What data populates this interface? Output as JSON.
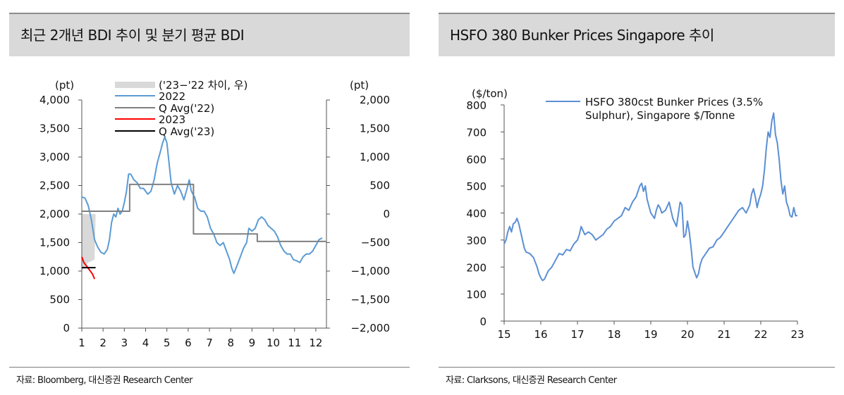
{
  "left": {
    "title": "최근 2개년 BDI 추이 및 분기 평균 BDI",
    "source": "자료: Bloomberg, 대신증권 Research Center",
    "chart_data": {
      "type": "line",
      "y_unit_left": "(pt)",
      "y_unit_right": "(pt)",
      "ylim_left": [
        0,
        4000
      ],
      "ylim_right": [
        -2000,
        2000
      ],
      "xlim": [
        1,
        12.5
      ],
      "x_ticks": [
        "1",
        "2",
        "3",
        "4",
        "5",
        "6",
        "7",
        "8",
        "9",
        "10",
        "11",
        "12"
      ],
      "y_ticks_left": [
        "0",
        "500",
        "1,000",
        "1,500",
        "2,000",
        "2,500",
        "3,000",
        "3,500",
        "4,000"
      ],
      "y_ticks_right": [
        "−2,000",
        "−1,500",
        "−1,000",
        "−500",
        "0",
        "500",
        "1,000",
        "1,500",
        "2,000"
      ],
      "grid": false,
      "legend": "top-left",
      "colors": {
        "diff": "#d9d9d9",
        "bdi2022": "#5b9bd5",
        "qavg22": "#808080",
        "bdi2023": "#ff0000",
        "qavg23": "#000000"
      },
      "series": [
        {
          "name": "('23−'22 차이, 우)",
          "axis": "right",
          "kind": "area",
          "points": [
            [
              1.0,
              -1000
            ],
            [
              1.3,
              -850
            ],
            [
              1.6,
              -800
            ],
            [
              1.65,
              0
            ]
          ]
        },
        {
          "name": "2022",
          "axis": "left",
          "kind": "line",
          "points": [
            [
              1.0,
              2300
            ],
            [
              1.15,
              2280
            ],
            [
              1.3,
              2150
            ],
            [
              1.45,
              1900
            ],
            [
              1.6,
              1550
            ],
            [
              1.75,
              1420
            ],
            [
              1.9,
              1330
            ],
            [
              2.05,
              1300
            ],
            [
              2.2,
              1380
            ],
            [
              2.3,
              1550
            ],
            [
              2.4,
              1850
            ],
            [
              2.5,
              2000
            ],
            [
              2.6,
              1950
            ],
            [
              2.7,
              2100
            ],
            [
              2.8,
              2000
            ],
            [
              2.9,
              2050
            ],
            [
              3.0,
              2200
            ],
            [
              3.1,
              2400
            ],
            [
              3.2,
              2700
            ],
            [
              3.3,
              2700
            ],
            [
              3.45,
              2600
            ],
            [
              3.6,
              2550
            ],
            [
              3.75,
              2450
            ],
            [
              3.9,
              2450
            ],
            [
              4.0,
              2400
            ],
            [
              4.1,
              2350
            ],
            [
              4.25,
              2400
            ],
            [
              4.4,
              2600
            ],
            [
              4.55,
              2900
            ],
            [
              4.7,
              3100
            ],
            [
              4.8,
              3250
            ],
            [
              4.9,
              3350
            ],
            [
              5.0,
              3250
            ],
            [
              5.1,
              2900
            ],
            [
              5.2,
              2550
            ],
            [
              5.35,
              2350
            ],
            [
              5.5,
              2500
            ],
            [
              5.65,
              2400
            ],
            [
              5.8,
              2250
            ],
            [
              5.95,
              2450
            ],
            [
              6.05,
              2600
            ],
            [
              6.15,
              2400
            ],
            [
              6.3,
              2300
            ],
            [
              6.45,
              2100
            ],
            [
              6.6,
              2050
            ],
            [
              6.75,
              2050
            ],
            [
              6.9,
              1950
            ],
            [
              7.05,
              1750
            ],
            [
              7.2,
              1650
            ],
            [
              7.35,
              1500
            ],
            [
              7.5,
              1450
            ],
            [
              7.65,
              1500
            ],
            [
              7.8,
              1350
            ],
            [
              7.95,
              1200
            ],
            [
              8.05,
              1050
            ],
            [
              8.15,
              960
            ],
            [
              8.3,
              1100
            ],
            [
              8.45,
              1250
            ],
            [
              8.6,
              1400
            ],
            [
              8.75,
              1500
            ],
            [
              8.85,
              1750
            ],
            [
              9.0,
              1700
            ],
            [
              9.15,
              1750
            ],
            [
              9.3,
              1900
            ],
            [
              9.45,
              1950
            ],
            [
              9.6,
              1900
            ],
            [
              9.75,
              1800
            ],
            [
              9.9,
              1750
            ],
            [
              10.05,
              1700
            ],
            [
              10.2,
              1600
            ],
            [
              10.35,
              1450
            ],
            [
              10.5,
              1350
            ],
            [
              10.65,
              1300
            ],
            [
              10.8,
              1300
            ],
            [
              10.95,
              1200
            ],
            [
              11.1,
              1180
            ],
            [
              11.25,
              1150
            ],
            [
              11.4,
              1250
            ],
            [
              11.55,
              1300
            ],
            [
              11.7,
              1300
            ],
            [
              11.85,
              1350
            ],
            [
              12.0,
              1450
            ],
            [
              12.15,
              1550
            ],
            [
              12.3,
              1580
            ]
          ]
        },
        {
          "name": "Q Avg('22)",
          "axis": "left",
          "kind": "step",
          "points": [
            [
              1.0,
              2050
            ],
            [
              3.25,
              2050
            ],
            [
              3.25,
              2520
            ],
            [
              6.25,
              2520
            ],
            [
              6.25,
              1650
            ],
            [
              9.25,
              1650
            ],
            [
              9.25,
              1520
            ],
            [
              12.5,
              1520
            ]
          ]
        },
        {
          "name": "2023",
          "axis": "left",
          "kind": "line",
          "points": [
            [
              1.0,
              1250
            ],
            [
              1.1,
              1150
            ],
            [
              1.2,
              1100
            ],
            [
              1.3,
              1050
            ],
            [
              1.4,
              1000
            ],
            [
              1.5,
              950
            ],
            [
              1.6,
              860
            ]
          ]
        },
        {
          "name": "Q Avg('23)",
          "axis": "left",
          "kind": "line",
          "points": [
            [
              1.0,
              1060
            ],
            [
              1.65,
              1060
            ]
          ]
        }
      ]
    }
  },
  "right": {
    "title": "HSFO 380 Bunker Prices Singapore 추이",
    "source": "자료: Clarksons, 대신증권 Research Center",
    "chart_data": {
      "type": "line",
      "y_unit": "($/ton)",
      "ylim": [
        0,
        800
      ],
      "xlim": [
        15,
        23
      ],
      "x_ticks": [
        "15",
        "16",
        "17",
        "18",
        "19",
        "20",
        "21",
        "22",
        "23"
      ],
      "y_ticks": [
        "0",
        "100",
        "200",
        "300",
        "400",
        "500",
        "600",
        "700",
        "800"
      ],
      "grid": false,
      "legend": "top-right",
      "color": "#5b8fd4",
      "series": [
        {
          "name": "HSFO 380cst Bunker Prices (3.5% Sulphur), Singapore $/Tonne",
          "legend_line1": "HSFO 380cst Bunker Prices (3.5%",
          "legend_line2": "Sulphur), Singapore $/Tonne",
          "points": [
            [
              15.0,
              285
            ],
            [
              15.05,
              300
            ],
            [
              15.1,
              330
            ],
            [
              15.15,
              350
            ],
            [
              15.2,
              330
            ],
            [
              15.25,
              360
            ],
            [
              15.3,
              365
            ],
            [
              15.35,
              380
            ],
            [
              15.4,
              360
            ],
            [
              15.45,
              330
            ],
            [
              15.5,
              300
            ],
            [
              15.55,
              270
            ],
            [
              15.6,
              255
            ],
            [
              15.7,
              250
            ],
            [
              15.8,
              235
            ],
            [
              15.9,
              200
            ],
            [
              15.95,
              175
            ],
            [
              16.0,
              160
            ],
            [
              16.05,
              150
            ],
            [
              16.1,
              155
            ],
            [
              16.15,
              170
            ],
            [
              16.2,
              185
            ],
            [
              16.3,
              200
            ],
            [
              16.4,
              225
            ],
            [
              16.5,
              250
            ],
            [
              16.6,
              245
            ],
            [
              16.7,
              265
            ],
            [
              16.8,
              260
            ],
            [
              16.9,
              285
            ],
            [
              17.0,
              300
            ],
            [
              17.05,
              320
            ],
            [
              17.1,
              350
            ],
            [
              17.2,
              320
            ],
            [
              17.3,
              330
            ],
            [
              17.4,
              320
            ],
            [
              17.5,
              300
            ],
            [
              17.6,
              310
            ],
            [
              17.7,
              320
            ],
            [
              17.8,
              340
            ],
            [
              17.9,
              350
            ],
            [
              18.0,
              370
            ],
            [
              18.1,
              380
            ],
            [
              18.2,
              390
            ],
            [
              18.3,
              420
            ],
            [
              18.4,
              410
            ],
            [
              18.5,
              440
            ],
            [
              18.6,
              460
            ],
            [
              18.7,
              500
            ],
            [
              18.75,
              510
            ],
            [
              18.8,
              480
            ],
            [
              18.85,
              500
            ],
            [
              18.9,
              450
            ],
            [
              19.0,
              400
            ],
            [
              19.1,
              380
            ],
            [
              19.15,
              410
            ],
            [
              19.2,
              430
            ],
            [
              19.25,
              420
            ],
            [
              19.3,
              400
            ],
            [
              19.4,
              410
            ],
            [
              19.5,
              440
            ],
            [
              19.6,
              380
            ],
            [
              19.7,
              350
            ],
            [
              19.8,
              440
            ],
            [
              19.85,
              430
            ],
            [
              19.9,
              310
            ],
            [
              19.95,
              320
            ],
            [
              20.0,
              370
            ],
            [
              20.05,
              330
            ],
            [
              20.1,
              270
            ],
            [
              20.15,
              200
            ],
            [
              20.2,
              180
            ],
            [
              20.25,
              160
            ],
            [
              20.3,
              175
            ],
            [
              20.35,
              210
            ],
            [
              20.4,
              230
            ],
            [
              20.5,
              250
            ],
            [
              20.6,
              270
            ],
            [
              20.7,
              275
            ],
            [
              20.8,
              300
            ],
            [
              20.9,
              310
            ],
            [
              21.0,
              330
            ],
            [
              21.1,
              350
            ],
            [
              21.2,
              370
            ],
            [
              21.3,
              390
            ],
            [
              21.4,
              410
            ],
            [
              21.5,
              420
            ],
            [
              21.6,
              400
            ],
            [
              21.7,
              430
            ],
            [
              21.75,
              470
            ],
            [
              21.8,
              490
            ],
            [
              21.85,
              460
            ],
            [
              21.9,
              420
            ],
            [
              21.95,
              450
            ],
            [
              22.0,
              470
            ],
            [
              22.05,
              500
            ],
            [
              22.1,
              560
            ],
            [
              22.15,
              640
            ],
            [
              22.2,
              700
            ],
            [
              22.25,
              680
            ],
            [
              22.3,
              740
            ],
            [
              22.35,
              770
            ],
            [
              22.4,
              690
            ],
            [
              22.45,
              660
            ],
            [
              22.5,
              600
            ],
            [
              22.55,
              520
            ],
            [
              22.6,
              470
            ],
            [
              22.65,
              500
            ],
            [
              22.7,
              440
            ],
            [
              22.75,
              420
            ],
            [
              22.8,
              390
            ],
            [
              22.85,
              385
            ],
            [
              22.9,
              420
            ],
            [
              22.95,
              390
            ],
            [
              23.0,
              390
            ]
          ]
        }
      ]
    }
  }
}
